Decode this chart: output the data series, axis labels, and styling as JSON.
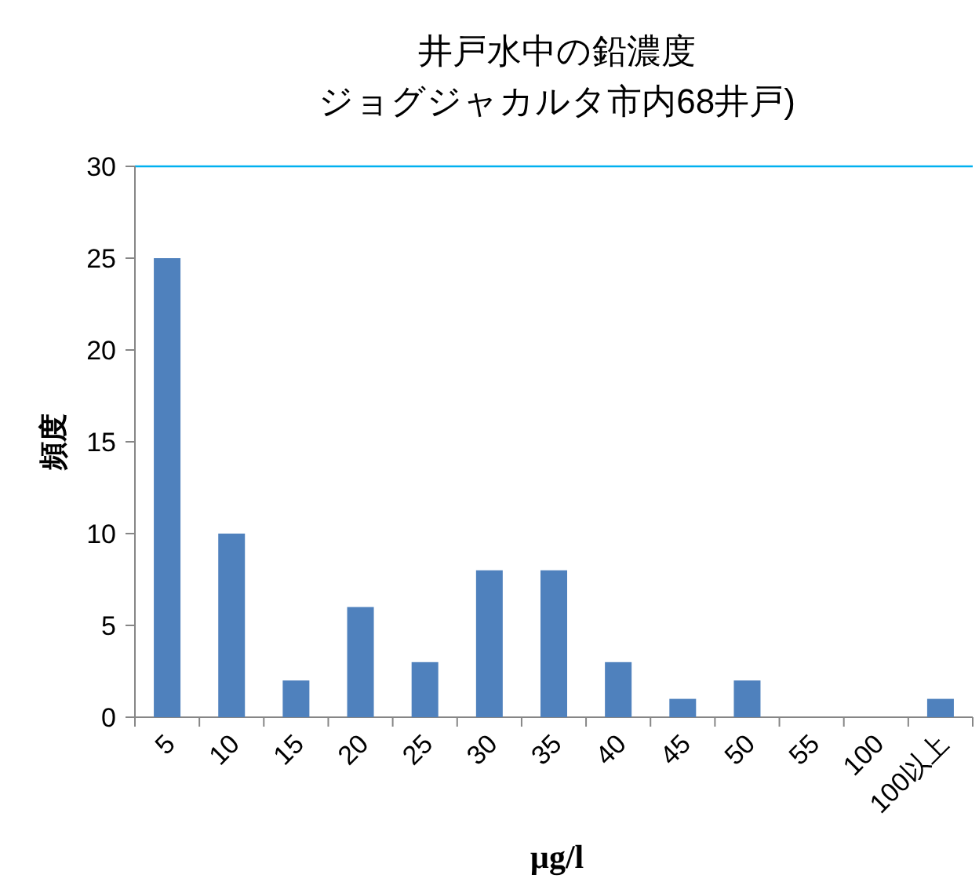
{
  "chart_data": {
    "type": "bar",
    "title": "井戸水中の鉛濃度",
    "subtitle": "ジョグジャカルタ市内68井戸)",
    "xlabel": "µg/l",
    "ylabel": "頻度",
    "categories": [
      "5",
      "10",
      "15",
      "20",
      "25",
      "30",
      "35",
      "40",
      "45",
      "50",
      "55",
      "100",
      "100以上"
    ],
    "values": [
      25,
      10,
      2,
      6,
      3,
      8,
      8,
      3,
      1,
      2,
      0,
      0,
      1
    ],
    "color": "#4f81bd",
    "ylim": [
      0,
      30
    ],
    "yticks": [
      0,
      5,
      10,
      15,
      20,
      25,
      30
    ],
    "ref_lines": [
      {
        "axis": "y",
        "value": 30,
        "color": "#00b0f0"
      }
    ]
  }
}
